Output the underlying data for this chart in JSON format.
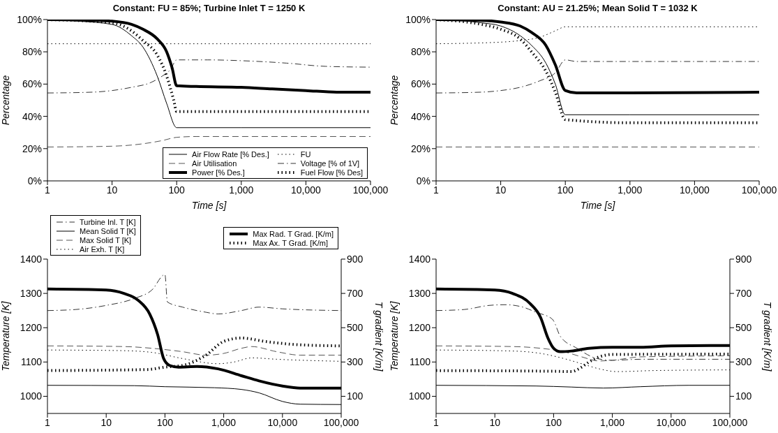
{
  "chart_data": [
    {
      "type": "line",
      "title": "Constant: FU = 85%; Turbine Inlet T = 1250 K",
      "xlabel": "Time [s]",
      "ylabel": "Percentage",
      "log": "x",
      "xlim": [
        1,
        100000
      ],
      "xticks": [
        1,
        10,
        100,
        {
          "value": 1000,
          "label": "1,000"
        },
        {
          "value": 10000,
          "label": "10,000"
        },
        {
          "value": 100000,
          "label": "100,000"
        }
      ],
      "ylim": [
        0,
        100
      ],
      "yticks": [
        {
          "value": 0,
          "label": "0%"
        },
        {
          "value": 20,
          "label": "20%"
        },
        {
          "value": 40,
          "label": "40%"
        },
        {
          "value": 60,
          "label": "60%"
        },
        {
          "value": 80,
          "label": "80%"
        },
        {
          "value": 100,
          "label": "100%"
        }
      ],
      "marker": "none",
      "legend": "bottom right",
      "series": [
        {
          "name": "Air Flow Rate [% Des.]",
          "color": "#000000",
          "line_style": "solid",
          "x": [
            1,
            3,
            10,
            20,
            30,
            50,
            70,
            100,
            1000,
            100000
          ],
          "values": [
            100,
            99,
            97,
            90,
            83,
            65,
            48,
            33,
            33,
            33
          ]
        },
        {
          "name": "FU",
          "color": "#000000",
          "line_style": "dotted",
          "x": [
            1,
            100,
            100000
          ],
          "values": [
            85,
            85,
            85
          ]
        },
        {
          "name": "Air Utilisation",
          "color": "#555555",
          "line_style": "dashed",
          "x": [
            1,
            10,
            30,
            60,
            100,
            200,
            100000
          ],
          "values": [
            21,
            21.5,
            23,
            25,
            27,
            27.5,
            27.5
          ]
        },
        {
          "name": "Voltage [% of 1V]",
          "color": "#333333",
          "line_style": "dashdot",
          "x": [
            1,
            5,
            10,
            20,
            40,
            60,
            80,
            100,
            300,
            1000,
            5000,
            20000,
            100000
          ],
          "values": [
            54.5,
            55,
            56,
            58,
            61,
            65,
            69,
            75,
            75,
            74.5,
            73,
            71,
            70.5
          ]
        },
        {
          "name": "Power [% Des.]",
          "color": "#000000",
          "line_style": "solid",
          "x": [
            1,
            5,
            10,
            20,
            30,
            50,
            70,
            85,
            100,
            200,
            1000,
            3000,
            10000,
            30000,
            100000
          ],
          "values": [
            100,
            99.5,
            99,
            97,
            94,
            88,
            80,
            70,
            59,
            58.5,
            58,
            57,
            56,
            55,
            55
          ]
        },
        {
          "name": "Fuel Flow [% Des]",
          "color": "#000000",
          "line_style": "dotted",
          "x": [
            1,
            10,
            20,
            30,
            50,
            70,
            90,
            100,
            1000,
            100000
          ],
          "values": [
            100,
            98,
            93,
            87,
            78,
            65,
            50,
            43,
            43,
            43
          ]
        }
      ]
    },
    {
      "type": "line",
      "title": "Constant: AU = 21.25%; Mean Solid T = 1032 K",
      "xlabel": "Time [s]",
      "ylabel": "Percentage",
      "log": "x",
      "xlim": [
        1,
        100000
      ],
      "xticks": [
        1,
        10,
        100,
        {
          "value": 1000,
          "label": "1,000"
        },
        {
          "value": 10000,
          "label": "10,000"
        },
        {
          "value": 100000,
          "label": "100,000"
        }
      ],
      "ylim": [
        0,
        100
      ],
      "yticks": [
        {
          "value": 0,
          "label": "0%"
        },
        {
          "value": 20,
          "label": "20%"
        },
        {
          "value": 40,
          "label": "40%"
        },
        {
          "value": 60,
          "label": "60%"
        },
        {
          "value": 80,
          "label": "80%"
        },
        {
          "value": 100,
          "label": "100%"
        }
      ],
      "marker": "none",
      "series": [
        {
          "color": "#000000",
          "line_style": "solid",
          "x": [
            1,
            5,
            10,
            20,
            30,
            50,
            70,
            100,
            1000,
            100000
          ],
          "values": [
            100,
            98,
            96,
            90,
            84,
            73,
            60,
            41,
            41,
            41
          ]
        },
        {
          "color": "#000000",
          "line_style": "dotted",
          "x": [
            1,
            10,
            20,
            40,
            70,
            100,
            1000,
            100000
          ],
          "values": [
            85,
            86,
            87,
            89,
            93,
            95.5,
            95.5,
            95.5
          ]
        },
        {
          "color": "#555555",
          "line_style": "dashed",
          "x": [
            1,
            100,
            100000
          ],
          "values": [
            21,
            21,
            21
          ]
        },
        {
          "color": "#333333",
          "line_style": "dashdot",
          "x": [
            1,
            5,
            10,
            20,
            40,
            70,
            100,
            150,
            1000,
            100000
          ],
          "values": [
            54.5,
            55,
            56,
            58,
            62,
            67,
            75,
            74,
            74,
            74
          ]
        },
        {
          "color": "#000000",
          "line_style": "solid",
          "x": [
            1,
            5,
            10,
            20,
            30,
            50,
            70,
            100,
            150,
            1000,
            100000
          ],
          "values": [
            100,
            99.5,
            98.5,
            96,
            92,
            84,
            72,
            56,
            54.5,
            54.5,
            55
          ]
        },
        {
          "color": "#000000",
          "line_style": "dotted",
          "x": [
            1,
            5,
            10,
            20,
            30,
            50,
            70,
            100,
            1000,
            100000
          ],
          "values": [
            100,
            97,
            94,
            88,
            80,
            68,
            55,
            38,
            36,
            36
          ]
        }
      ]
    },
    {
      "type": "line",
      "ylabel": "Temperature [K]",
      "y2label": "T gradient [K/m]",
      "log": "x",
      "xlim": [
        1,
        100000
      ],
      "xticks": [
        1,
        10,
        100,
        {
          "value": 1000,
          "label": "1,000"
        },
        {
          "value": 10000,
          "label": "10,000"
        },
        {
          "value": 100000,
          "label": "100,000"
        }
      ],
      "ylim": [
        950,
        1400
      ],
      "yticks": [
        1000,
        1100,
        1200,
        1300,
        1400
      ],
      "y2lim": [
        0,
        900
      ],
      "y2ticks": [
        100,
        300,
        500,
        700,
        900
      ],
      "marker": "none",
      "legend": "top",
      "series": [
        {
          "name": "Turbine Inl. T [K]",
          "color": "#333333",
          "line_style": "dashdot",
          "x": [
            1,
            3,
            10,
            30,
            60,
            100,
            110,
            200,
            500,
            800,
            2000,
            4000,
            10000,
            100000
          ],
          "values": [
            1250,
            1253,
            1265,
            1285,
            1310,
            1355,
            1275,
            1260,
            1245,
            1240,
            1250,
            1260,
            1255,
            1250
          ]
        },
        {
          "name": "Mean Solid T [K]",
          "color": "#000000",
          "line_style": "solid",
          "x": [
            1,
            30,
            100,
            700,
            2000,
            4000,
            10000,
            20000,
            100000
          ],
          "values": [
            1032,
            1031,
            1028,
            1025,
            1020,
            1010,
            985,
            977,
            976
          ]
        },
        {
          "name": "Max Solid T [K]",
          "color": "#555555",
          "line_style": "dashed",
          "x": [
            1,
            20,
            60,
            200,
            500,
            1000,
            2000,
            3000,
            8000,
            20000,
            100000
          ],
          "values": [
            1147,
            1145,
            1140,
            1130,
            1120,
            1125,
            1140,
            1145,
            1130,
            1120,
            1120
          ]
        },
        {
          "name": "Air Exh. T [K]",
          "color": "#000000",
          "line_style": "dotted",
          "x": [
            1,
            20,
            60,
            200,
            800,
            1500,
            3000,
            8000,
            100000
          ],
          "values": [
            1135,
            1133,
            1128,
            1110,
            1095,
            1100,
            1112,
            1108,
            1102
          ]
        },
        {
          "name": "Max Rad. T Grad. [K/m]",
          "color": "#000000",
          "line_style": "solid",
          "axis": "y2",
          "x": [
            1,
            10,
            20,
            35,
            55,
            75,
            95,
            120,
            170,
            350,
            800,
            2000,
            4000,
            10000,
            20000,
            100000
          ],
          "values": [
            726,
            720,
            700,
            660,
            580,
            460,
            320,
            280,
            270,
            274,
            260,
            220,
            190,
            160,
            148,
            148
          ]
        },
        {
          "name": "Max Ax. T Grad. [K/m]",
          "color": "#000000",
          "line_style": "dotted",
          "axis": "y2",
          "x": [
            1,
            50,
            100,
            200,
            500,
            1000,
            2000,
            5000,
            20000,
            100000
          ],
          "values": [
            250,
            256,
            270,
            280,
            340,
            420,
            440,
            420,
            400,
            394
          ]
        }
      ]
    },
    {
      "type": "line",
      "ylabel": "Temperature [K]",
      "y2label": "T gradient [K/m]",
      "log": "x",
      "xlim": [
        1,
        100000
      ],
      "xticks": [
        1,
        10,
        100,
        {
          "value": 1000,
          "label": "1,000"
        },
        {
          "value": 10000,
          "label": "10,000"
        },
        {
          "value": 100000,
          "label": "100,000"
        }
      ],
      "ylim": [
        950,
        1400
      ],
      "yticks": [
        1000,
        1100,
        1200,
        1300,
        1400
      ],
      "y2lim": [
        0,
        900
      ],
      "y2ticks": [
        100,
        300,
        500,
        700,
        900
      ],
      "marker": "none",
      "series": [
        {
          "color": "#333333",
          "line_style": "dashdot",
          "x": [
            1,
            3,
            8,
            15,
            30,
            50,
            95,
            100,
            130,
            250,
            550,
            1000,
            3000,
            100000
          ],
          "values": [
            1250,
            1253,
            1265,
            1267,
            1260,
            1245,
            1225,
            1220,
            1175,
            1140,
            1110,
            1105,
            1108,
            1108
          ]
        },
        {
          "color": "#000000",
          "line_style": "solid",
          "x": [
            1,
            50,
            200,
            700,
            3000,
            20000,
            100000
          ],
          "values": [
            1032,
            1030,
            1027,
            1024,
            1028,
            1032,
            1032
          ]
        },
        {
          "color": "#555555",
          "line_style": "dashed",
          "x": [
            1,
            20,
            60,
            150,
            300,
            600,
            1000,
            3000,
            100000
          ],
          "values": [
            1147,
            1145,
            1140,
            1130,
            1115,
            1103,
            1105,
            1115,
            1118
          ]
        },
        {
          "color": "#000000",
          "line_style": "dotted",
          "x": [
            1,
            20,
            60,
            150,
            300,
            600,
            1200,
            5000,
            100000
          ],
          "values": [
            1135,
            1132,
            1125,
            1110,
            1095,
            1080,
            1072,
            1075,
            1077
          ]
        },
        {
          "color": "#000000",
          "line_style": "solid",
          "axis": "y2",
          "x": [
            1,
            10,
            20,
            40,
            60,
            80,
            100,
            130,
            200,
            400,
            1000,
            3000,
            10000,
            100000
          ],
          "values": [
            726,
            720,
            700,
            640,
            560,
            440,
            380,
            360,
            364,
            380,
            386,
            386,
            394,
            396
          ]
        },
        {
          "color": "#000000",
          "line_style": "dotted",
          "axis": "y2",
          "x": [
            1,
            100,
            200,
            300,
            400,
            600,
            1000,
            100000
          ],
          "values": [
            250,
            246,
            244,
            270,
            300,
            330,
            344,
            346
          ]
        }
      ]
    }
  ]
}
